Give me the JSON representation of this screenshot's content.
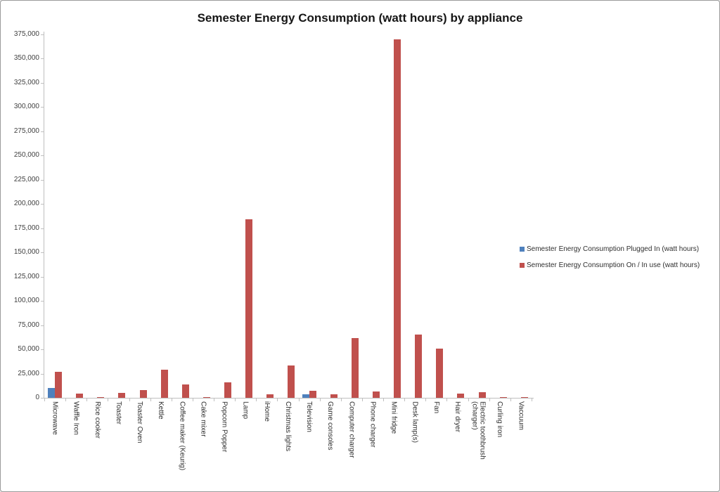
{
  "chart_data": {
    "type": "bar",
    "title": "Semester Energy Consumption (watt hours) by appliance",
    "xlabel": "",
    "ylabel": "",
    "ylim": [
      0,
      375000
    ],
    "ytick_step": 25000,
    "ytick_format": "comma",
    "grid": false,
    "legend_position": "right",
    "categories": [
      "Microwave",
      "Waffle Iron",
      "Rice cooker",
      "Toaster",
      "Toaster Oven",
      "Kettle",
      "Coffee maker (Keurig)",
      "Cake mixer",
      "Popcorn Popper",
      "Lamp",
      "iHome",
      "Christmas lights",
      "Television",
      "Game consoles",
      "Computer charger",
      "Phone charger",
      "Mini fridge",
      "Desk lamp(s)",
      "Fan",
      "Hair dryer",
      "Electric toothbrush (charger)",
      "Curling iron",
      "Vaccuum"
    ],
    "series": [
      {
        "name": "Semester Energy Consumption Plugged In (watt hours)",
        "color": "#4F81BD",
        "values": [
          10500,
          0,
          0,
          0,
          0,
          0,
          0,
          0,
          0,
          0,
          0,
          0,
          3800,
          0,
          0,
          0,
          0,
          0,
          0,
          0,
          0,
          0,
          0
        ]
      },
      {
        "name": "Semester Energy Consumption On / In use (watt hours)",
        "color": "#C0504D",
        "values": [
          26500,
          4200,
          600,
          5100,
          8200,
          28800,
          14000,
          800,
          16000,
          184000,
          3300,
          33200,
          7300,
          3400,
          62000,
          6800,
          370000,
          65200,
          50800,
          4000,
          5900,
          400,
          900
        ]
      }
    ]
  }
}
